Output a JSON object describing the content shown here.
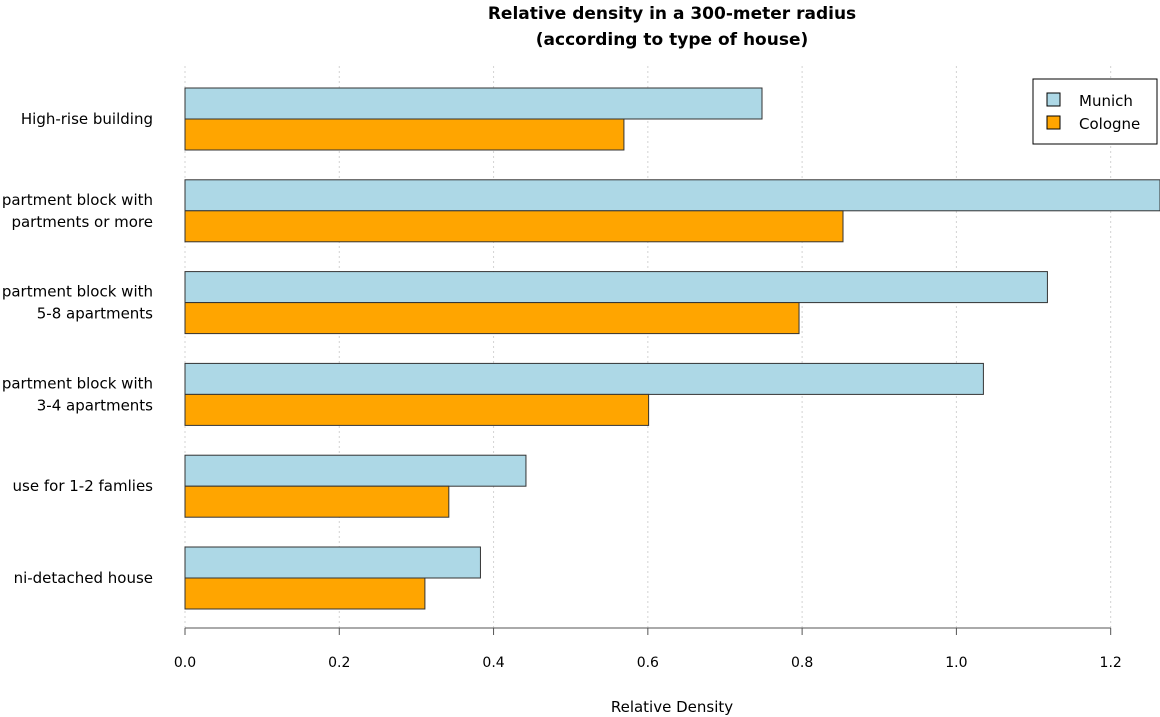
{
  "chart_data": {
    "type": "bar",
    "orientation": "horizontal",
    "title": "Relative density in a 300-meter radius",
    "subtitle": "(according to type of house)",
    "xlabel": "Relative Density",
    "ylabel": "",
    "xlim": [
      0,
      1.26
    ],
    "x_ticks": [
      "0.0",
      "0.2",
      "0.4",
      "0.6",
      "0.8",
      "1.0",
      "1.2"
    ],
    "grid": true,
    "legend_position": "top-right",
    "categories": [
      [
        "High-rise building"
      ],
      [
        "partment block with",
        "partments or more"
      ],
      [
        "partment block with",
        "5-8 apartments"
      ],
      [
        "partment block with",
        "3-4 apartments"
      ],
      [
        "use for 1-2 famlies"
      ],
      [
        "ni-detached house"
      ]
    ],
    "series": [
      {
        "name": "Munich",
        "color": "#add8e6",
        "values": [
          0.748,
          1.27,
          1.118,
          1.035,
          0.442,
          0.383
        ]
      },
      {
        "name": "Cologne",
        "color": "#ffa500",
        "values": [
          0.569,
          0.853,
          0.796,
          0.601,
          0.342,
          0.311
        ]
      }
    ]
  }
}
